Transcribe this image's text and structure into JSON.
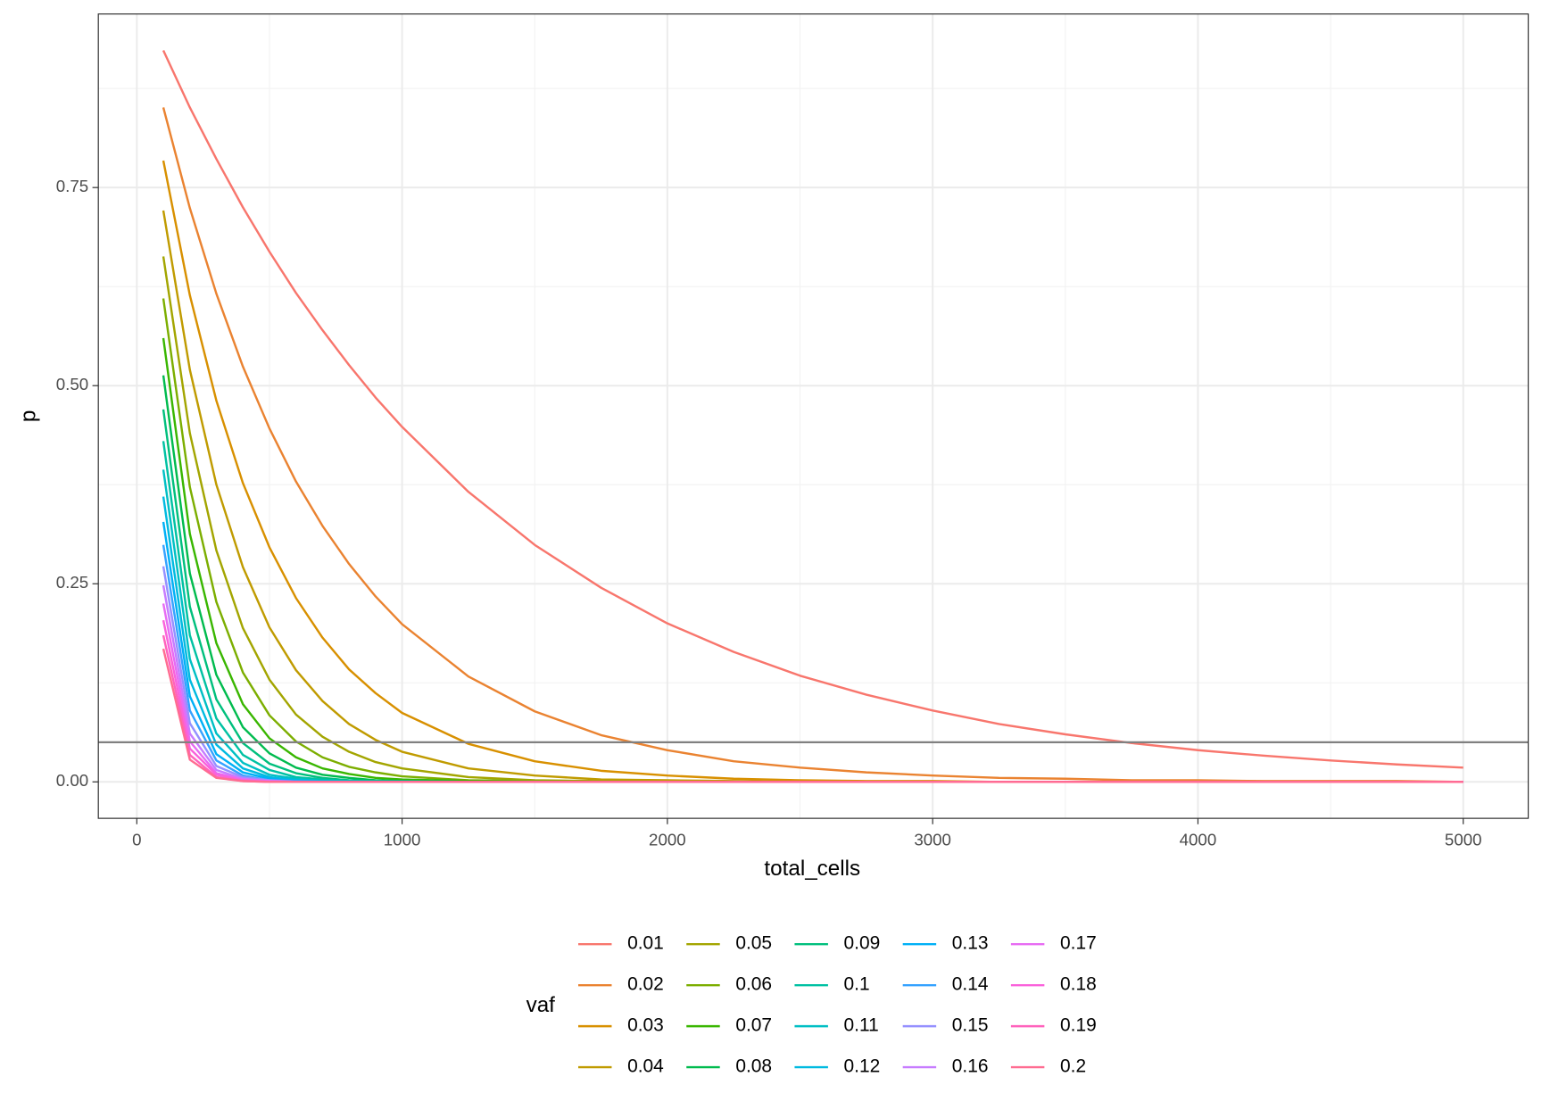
{
  "chart_data": {
    "type": "line",
    "x_label": "total_cells",
    "y_label": "p",
    "legend_title": "vaf",
    "x": [
      100,
      200,
      300,
      400,
      500,
      600,
      700,
      800,
      900,
      1000,
      1250,
      1500,
      1750,
      2000,
      2250,
      2500,
      2750,
      3000,
      3250,
      3500,
      3750,
      4000,
      4250,
      4500,
      4750,
      5000
    ],
    "xlim": [
      -145,
      5245
    ],
    "xticks": [
      0,
      1000,
      2000,
      3000,
      4000,
      5000
    ],
    "ylim": [
      -0.046,
      0.969
    ],
    "yticks": [
      {
        "value": 0,
        "label": "0.00"
      },
      {
        "value": 0.25,
        "label": "0.25"
      },
      {
        "value": 0.5,
        "label": "0.50"
      },
      {
        "value": 0.75,
        "label": "0.75"
      }
    ],
    "grid": true,
    "hline": 0.05,
    "hline_color": "#808080",
    "legend_position": "bottom",
    "series": [
      {
        "name": "0.01",
        "color": "#F8766D",
        "values": [
          0.923,
          0.851,
          0.786,
          0.725,
          0.669,
          0.617,
          0.57,
          0.526,
          0.485,
          0.448,
          0.366,
          0.299,
          0.245,
          0.2,
          0.164,
          0.134,
          0.11,
          0.09,
          0.073,
          0.06,
          0.049,
          0.04,
          0.033,
          0.027,
          0.022,
          0.018
        ]
      },
      {
        "name": "0.02",
        "color": "#EA8331",
        "values": [
          0.851,
          0.724,
          0.616,
          0.524,
          0.446,
          0.379,
          0.323,
          0.275,
          0.234,
          0.199,
          0.133,
          0.089,
          0.059,
          0.04,
          0.026,
          0.018,
          0.012,
          0.008,
          0.005,
          0.004,
          0.002,
          0.002,
          0.001,
          0.001,
          0.001,
          0
        ]
      },
      {
        "name": "0.03",
        "color": "#D89000",
        "values": [
          0.784,
          0.614,
          0.481,
          0.377,
          0.296,
          0.232,
          0.182,
          0.142,
          0.112,
          0.087,
          0.048,
          0.026,
          0.014,
          0.008,
          0.004,
          0.002,
          0.001,
          0.001,
          0,
          0,
          0,
          0,
          0,
          0,
          0,
          0
        ]
      },
      {
        "name": "0.04",
        "color": "#C09B00",
        "values": [
          0.721,
          0.52,
          0.375,
          0.271,
          0.195,
          0.141,
          0.102,
          0.073,
          0.053,
          0.038,
          0.017,
          0.008,
          0.003,
          0.002,
          0.001,
          0,
          0,
          0,
          0,
          0,
          0,
          0,
          0,
          0,
          0,
          0
        ]
      },
      {
        "name": "0.05",
        "color": "#A3A500",
        "values": [
          0.663,
          0.44,
          0.292,
          0.194,
          0.129,
          0.085,
          0.057,
          0.038,
          0.025,
          0.017,
          0.006,
          0.002,
          0.001,
          0,
          0,
          0,
          0,
          0,
          0,
          0,
          0,
          0,
          0,
          0,
          0,
          0
        ]
      },
      {
        "name": "0.06",
        "color": "#7CAE00",
        "values": [
          0.61,
          0.372,
          0.227,
          0.138,
          0.084,
          0.051,
          0.031,
          0.019,
          0.012,
          0.007,
          0.002,
          0.001,
          0,
          0,
          0,
          0,
          0,
          0,
          0,
          0,
          0,
          0,
          0,
          0,
          0,
          0
        ]
      },
      {
        "name": "0.07",
        "color": "#39B600",
        "values": [
          0.56,
          0.313,
          0.175,
          0.098,
          0.055,
          0.031,
          0.017,
          0.01,
          0.005,
          0.003,
          0.001,
          0,
          0,
          0,
          0,
          0,
          0,
          0,
          0,
          0,
          0,
          0,
          0,
          0,
          0,
          0
        ]
      },
      {
        "name": "0.08",
        "color": "#00BB4E",
        "values": [
          0.513,
          0.263,
          0.135,
          0.069,
          0.036,
          0.018,
          0.009,
          0.005,
          0.002,
          0.001,
          0,
          0,
          0,
          0,
          0,
          0,
          0,
          0,
          0,
          0,
          0,
          0,
          0,
          0,
          0,
          0
        ]
      },
      {
        "name": "0.09",
        "color": "#00BF7D",
        "values": [
          0.47,
          0.221,
          0.104,
          0.049,
          0.023,
          0.011,
          0.005,
          0.002,
          0.001,
          0.001,
          0,
          0,
          0,
          0,
          0,
          0,
          0,
          0,
          0,
          0,
          0,
          0,
          0,
          0,
          0,
          0
        ]
      },
      {
        "name": "0.1",
        "color": "#00C1A3",
        "values": [
          0.43,
          0.185,
          0.08,
          0.034,
          0.015,
          0.006,
          0.003,
          0.001,
          0.001,
          0,
          0,
          0,
          0,
          0,
          0,
          0,
          0,
          0,
          0,
          0,
          0,
          0,
          0,
          0,
          0,
          0
        ]
      },
      {
        "name": "0.11",
        "color": "#00BFC4",
        "values": [
          0.394,
          0.155,
          0.061,
          0.024,
          0.009,
          0.004,
          0.001,
          0.001,
          0,
          0,
          0,
          0,
          0,
          0,
          0,
          0,
          0,
          0,
          0,
          0,
          0,
          0,
          0,
          0,
          0,
          0
        ]
      },
      {
        "name": "0.12",
        "color": "#00BAE0",
        "values": [
          0.36,
          0.129,
          0.047,
          0.017,
          0.006,
          0.002,
          0.001,
          0,
          0,
          0,
          0,
          0,
          0,
          0,
          0,
          0,
          0,
          0,
          0,
          0,
          0,
          0,
          0,
          0,
          0,
          0
        ]
      },
      {
        "name": "0.13",
        "color": "#00B0F6",
        "values": [
          0.328,
          0.108,
          0.035,
          0.012,
          0.004,
          0.001,
          0,
          0,
          0,
          0,
          0,
          0,
          0,
          0,
          0,
          0,
          0,
          0,
          0,
          0,
          0,
          0,
          0,
          0,
          0,
          0
        ]
      },
      {
        "name": "0.14",
        "color": "#35A2FF",
        "values": [
          0.299,
          0.09,
          0.027,
          0.008,
          0.002,
          0.001,
          0,
          0,
          0,
          0,
          0,
          0,
          0,
          0,
          0,
          0,
          0,
          0,
          0,
          0,
          0,
          0,
          0,
          0,
          0,
          0
        ]
      },
      {
        "name": "0.15",
        "color": "#9590FF",
        "values": [
          0.272,
          0.074,
          0.02,
          0.006,
          0.002,
          0,
          0,
          0,
          0,
          0,
          0,
          0,
          0,
          0,
          0,
          0,
          0,
          0,
          0,
          0,
          0,
          0,
          0,
          0,
          0,
          0
        ]
      },
      {
        "name": "0.16",
        "color": "#C77CFF",
        "values": [
          0.248,
          0.061,
          0.015,
          0.004,
          0.001,
          0,
          0,
          0,
          0,
          0,
          0,
          0,
          0,
          0,
          0,
          0,
          0,
          0,
          0,
          0,
          0,
          0,
          0,
          0,
          0,
          0
        ]
      },
      {
        "name": "0.17",
        "color": "#E76BF3",
        "values": [
          0.225,
          0.051,
          0.011,
          0.003,
          0.001,
          0,
          0,
          0,
          0,
          0,
          0,
          0,
          0,
          0,
          0,
          0,
          0,
          0,
          0,
          0,
          0,
          0,
          0,
          0,
          0,
          0
        ]
      },
      {
        "name": "0.18",
        "color": "#FA62DB",
        "values": [
          0.204,
          0.042,
          0.009,
          0.002,
          0,
          0,
          0,
          0,
          0,
          0,
          0,
          0,
          0,
          0,
          0,
          0,
          0,
          0,
          0,
          0,
          0,
          0,
          0,
          0,
          0,
          0
        ]
      },
      {
        "name": "0.19",
        "color": "#FF62BC",
        "values": [
          0.185,
          0.034,
          0.006,
          0.001,
          0,
          0,
          0,
          0,
          0,
          0,
          0,
          0,
          0,
          0,
          0,
          0,
          0,
          0,
          0,
          0,
          0,
          0,
          0,
          0,
          0,
          0
        ]
      },
      {
        "name": "0.2",
        "color": "#FF6C91",
        "values": [
          0.168,
          0.028,
          0.005,
          0.001,
          0,
          0,
          0,
          0,
          0,
          0,
          0,
          0,
          0,
          0,
          0,
          0,
          0,
          0,
          0,
          0,
          0,
          0,
          0,
          0,
          0,
          0
        ]
      }
    ]
  }
}
